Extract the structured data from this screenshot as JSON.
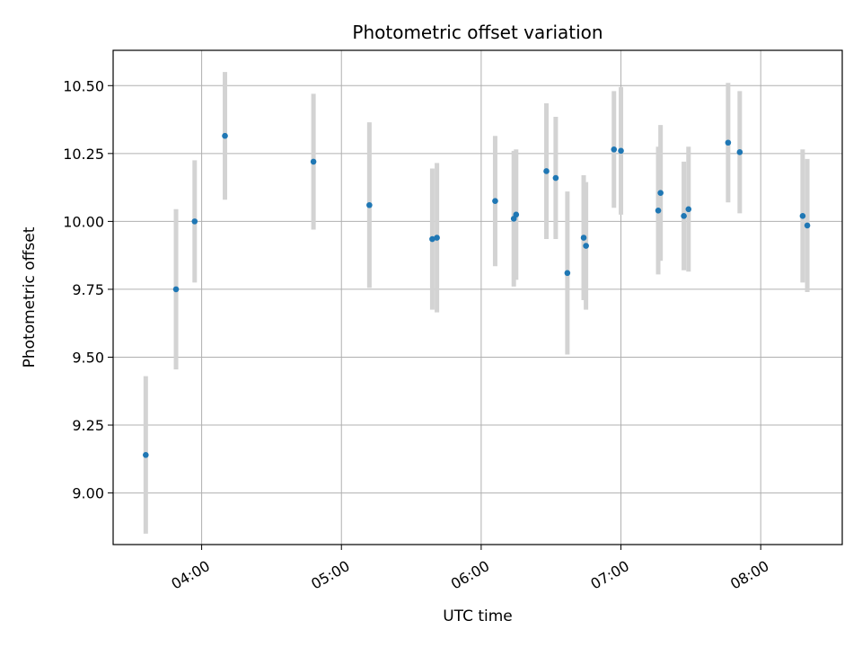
{
  "chart_data": {
    "type": "scatter",
    "title": "Photometric offset variation",
    "xlabel": "UTC time",
    "ylabel": "Photometric offset",
    "x_unit": "UTC time (HH:MM)",
    "xlim": [
      "03:22",
      "08:35"
    ],
    "ylim": [
      8.81,
      10.63
    ],
    "xticks": [
      "04:00",
      "05:00",
      "06:00",
      "07:00",
      "08:00"
    ],
    "yticks": [
      9.0,
      9.25,
      9.5,
      9.75,
      10.0,
      10.25,
      10.5
    ],
    "grid": true,
    "marker_color": "#1f77b4",
    "errorbar_color": "#d3d3d3",
    "points": [
      {
        "x": "03:36",
        "y": 9.14,
        "err": 0.29
      },
      {
        "x": "03:49",
        "y": 9.75,
        "err": 0.295
      },
      {
        "x": "03:57",
        "y": 10.0,
        "err": 0.225
      },
      {
        "x": "04:10",
        "y": 10.315,
        "err": 0.235
      },
      {
        "x": "04:48",
        "y": 10.22,
        "err": 0.25
      },
      {
        "x": "05:12",
        "y": 10.06,
        "err": 0.305
      },
      {
        "x": "05:39",
        "y": 9.935,
        "err": 0.26
      },
      {
        "x": "05:41",
        "y": 9.94,
        "err": 0.275
      },
      {
        "x": "06:06",
        "y": 10.075,
        "err": 0.24
      },
      {
        "x": "06:14",
        "y": 10.01,
        "err": 0.25
      },
      {
        "x": "06:15",
        "y": 10.025,
        "err": 0.24
      },
      {
        "x": "06:28",
        "y": 10.185,
        "err": 0.25
      },
      {
        "x": "06:32",
        "y": 10.16,
        "err": 0.225
      },
      {
        "x": "06:37",
        "y": 9.81,
        "err": 0.3
      },
      {
        "x": "06:44",
        "y": 9.94,
        "err": 0.23
      },
      {
        "x": "06:45",
        "y": 9.91,
        "err": 0.235
      },
      {
        "x": "06:57",
        "y": 10.265,
        "err": 0.215
      },
      {
        "x": "07:00",
        "y": 10.26,
        "err": 0.235
      },
      {
        "x": "07:16",
        "y": 10.04,
        "err": 0.235
      },
      {
        "x": "07:17",
        "y": 10.105,
        "err": 0.25
      },
      {
        "x": "07:27",
        "y": 10.02,
        "err": 0.2
      },
      {
        "x": "07:29",
        "y": 10.045,
        "err": 0.23
      },
      {
        "x": "07:46",
        "y": 10.29,
        "err": 0.22
      },
      {
        "x": "07:51",
        "y": 10.255,
        "err": 0.225
      },
      {
        "x": "08:18",
        "y": 10.02,
        "err": 0.245
      },
      {
        "x": "08:20",
        "y": 9.985,
        "err": 0.245
      }
    ]
  }
}
